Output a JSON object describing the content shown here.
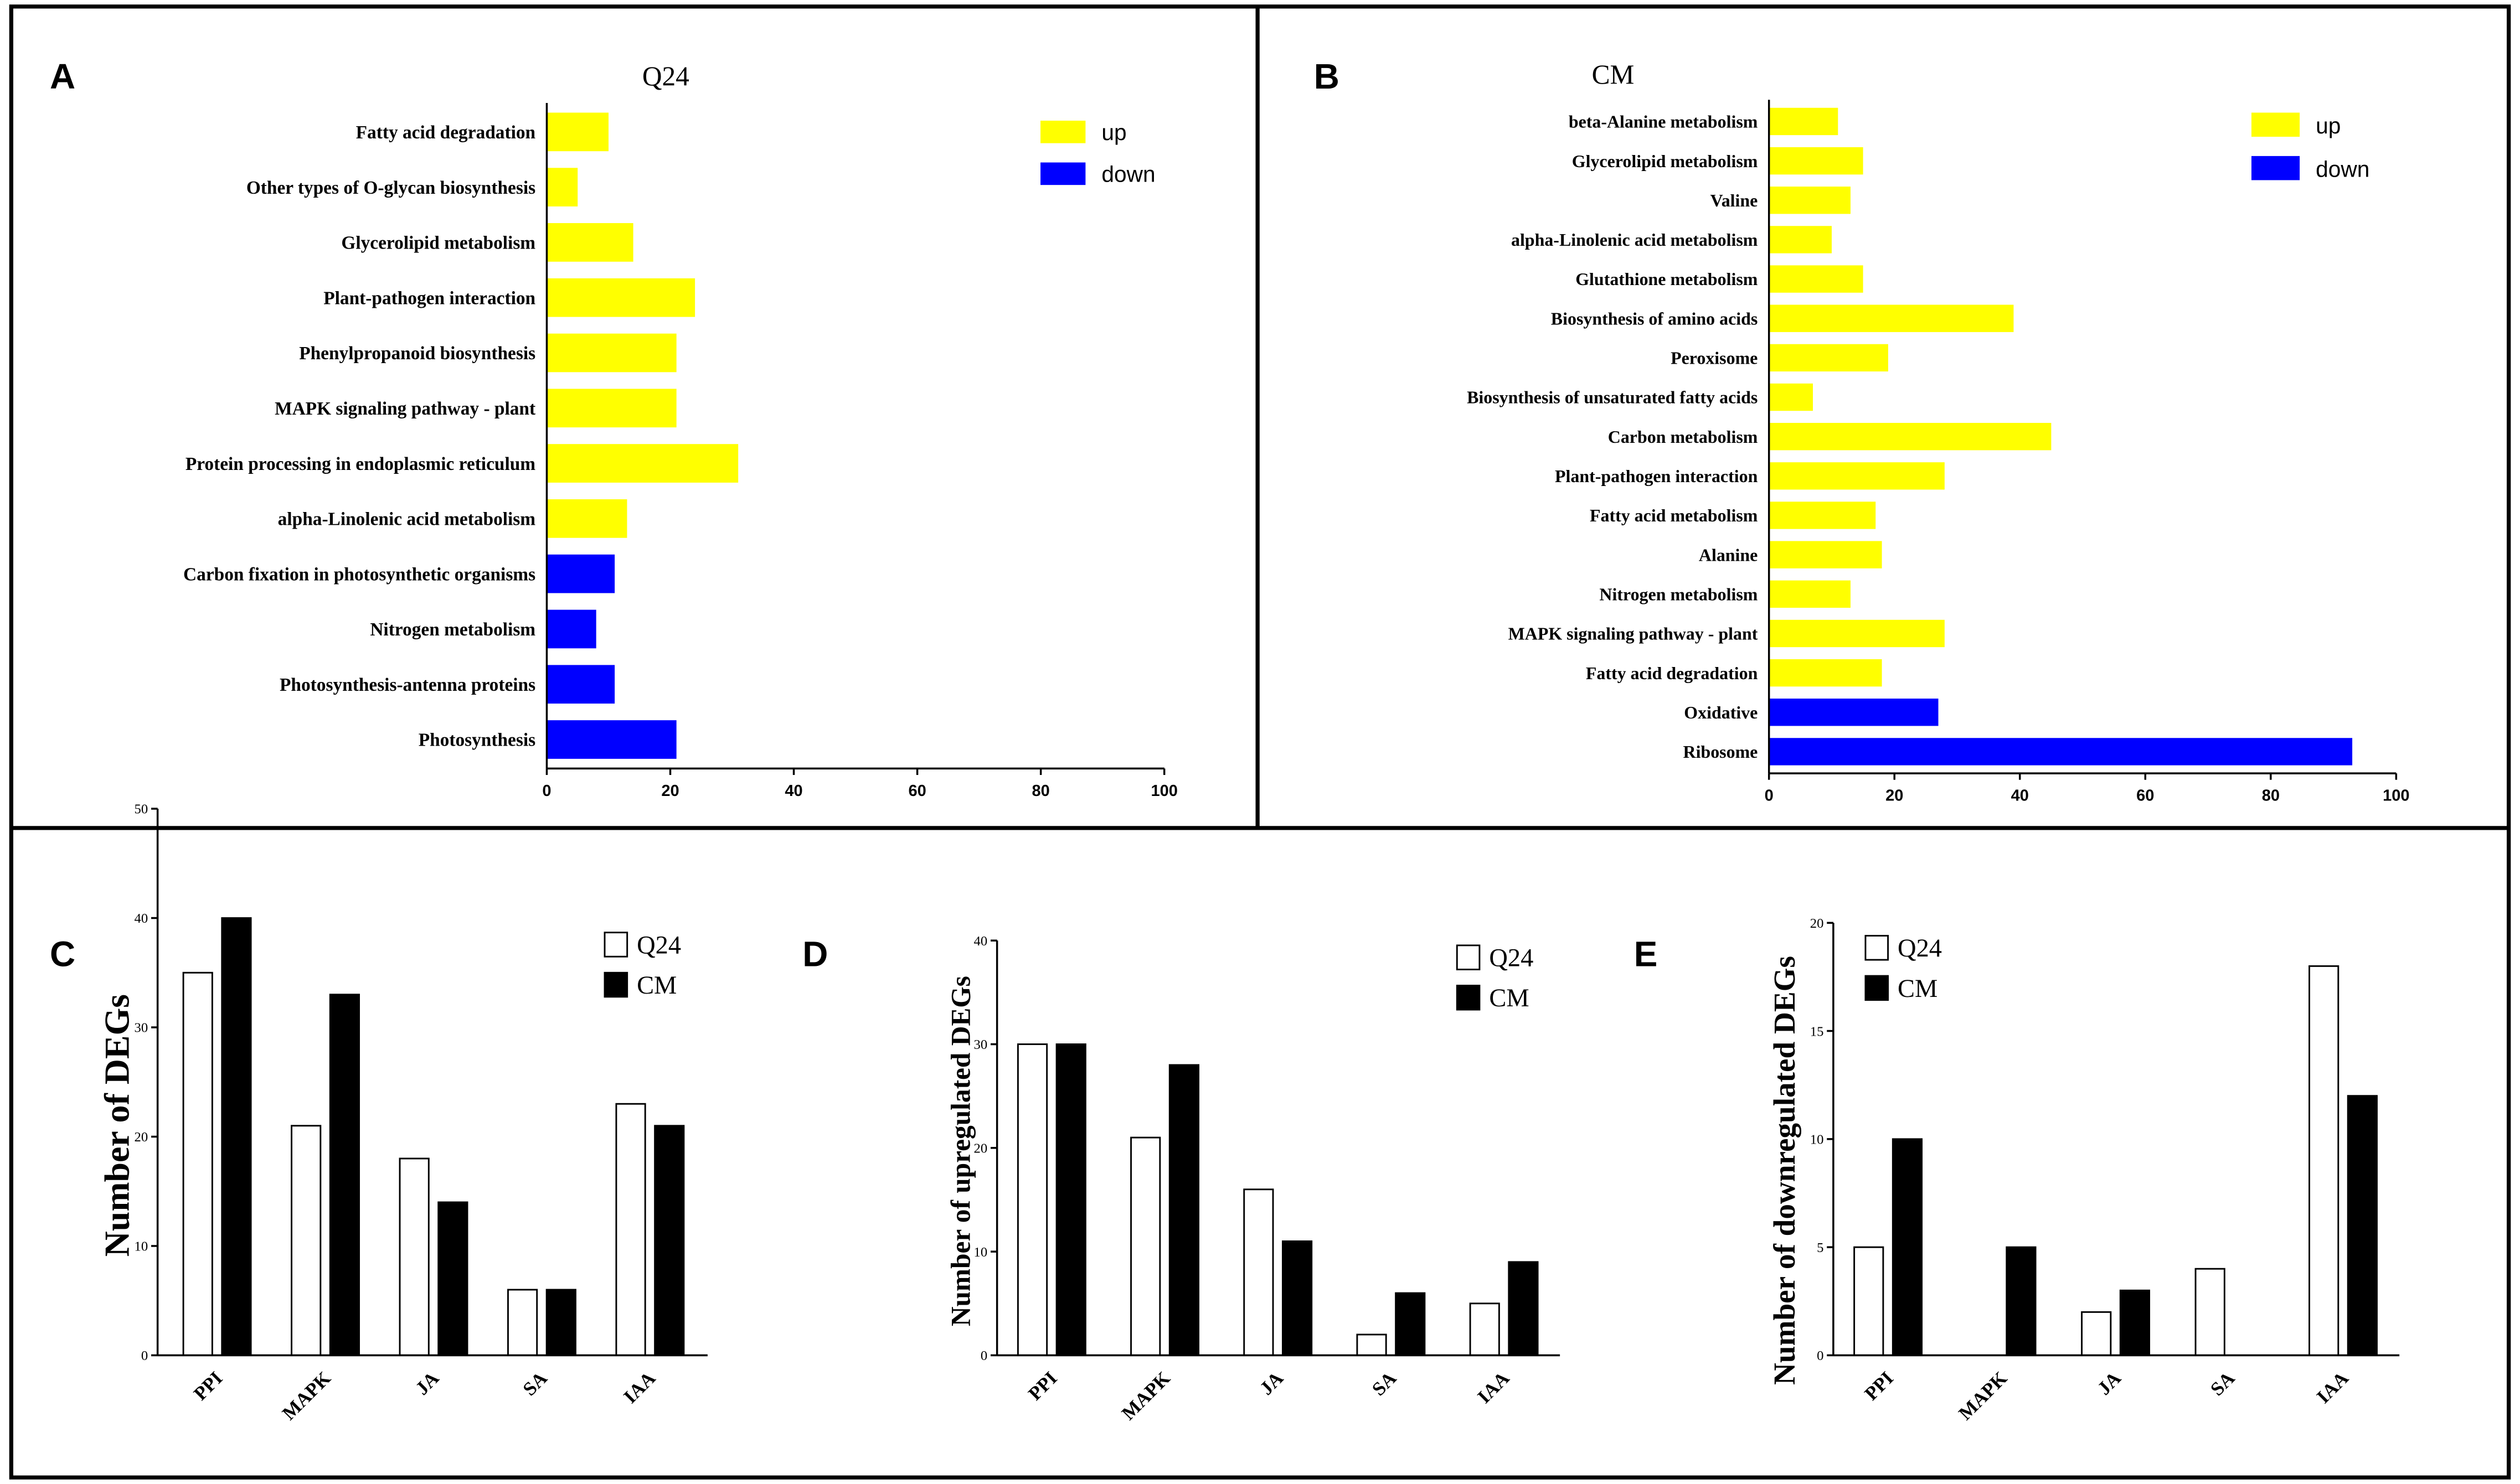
{
  "chart_data": [
    {
      "panel": "A",
      "type": "bar",
      "title": "Q24",
      "categories": [
        "Fatty acid degradation",
        "Other types of O-glycan biosynthesis",
        "Glycerolipid metabolism",
        "Plant-pathogen interaction",
        "Phenylpropanoid biosynthesis",
        "MAPK signaling pathway - plant",
        "Protein processing in endoplasmic reticulum",
        "alpha-Linolenic acid metabolism",
        "Carbon fixation in photosynthetic organisms",
        "Nitrogen metabolism",
        "Photosynthesis-antenna proteins",
        "Photosynthesis"
      ],
      "values": [
        10,
        5,
        14,
        24,
        21,
        21,
        31,
        13,
        11,
        8,
        11,
        21
      ],
      "groups": [
        "up",
        "up",
        "up",
        "up",
        "up",
        "up",
        "up",
        "up",
        "down",
        "down",
        "down",
        "down"
      ],
      "legend": [
        {
          "label": "up",
          "color": "#ffff00"
        },
        {
          "label": "down",
          "color": "#0000ff"
        }
      ],
      "xlim": [
        0,
        100
      ],
      "xticks": [
        0,
        20,
        40,
        60,
        80,
        100
      ]
    },
    {
      "panel": "B",
      "type": "bar",
      "title": "CM",
      "categories": [
        "beta-Alanine metabolism",
        "Glycerolipid metabolism",
        "Valine",
        "alpha-Linolenic acid metabolism",
        "Glutathione metabolism",
        "Biosynthesis of amino acids",
        "Peroxisome",
        "Biosynthesis of unsaturated fatty acids",
        "Carbon metabolism",
        "Plant-pathogen interaction",
        "Fatty acid metabolism",
        "Alanine",
        "Nitrogen metabolism",
        "MAPK signaling pathway - plant",
        "Fatty acid degradation",
        "Oxidative",
        "Ribosome"
      ],
      "values": [
        11,
        15,
        13,
        10,
        15,
        39,
        19,
        7,
        45,
        28,
        17,
        18,
        13,
        28,
        18,
        27,
        93
      ],
      "groups": [
        "up",
        "up",
        "up",
        "up",
        "up",
        "up",
        "up",
        "up",
        "up",
        "up",
        "up",
        "up",
        "up",
        "up",
        "up",
        "down",
        "down"
      ],
      "legend": [
        {
          "label": "up",
          "color": "#ffff00"
        },
        {
          "label": "down",
          "color": "#0000ff"
        }
      ],
      "xlim": [
        0,
        100
      ],
      "xticks": [
        0,
        20,
        40,
        60,
        80,
        100
      ]
    },
    {
      "panel": "C",
      "type": "bar",
      "categories": [
        "PPI",
        "MAPK",
        "JA",
        "SA",
        "IAA"
      ],
      "series": [
        {
          "name": "Q24",
          "values": [
            35,
            21,
            18,
            6,
            23
          ],
          "color": "#ffffff"
        },
        {
          "name": "CM",
          "values": [
            40,
            33,
            14,
            6,
            21
          ],
          "color": "#000000"
        }
      ],
      "ylabel": "Number of DEGs",
      "ylim": [
        0,
        50
      ],
      "yticks": [
        0,
        10,
        20,
        30,
        40,
        50
      ]
    },
    {
      "panel": "D",
      "type": "bar",
      "categories": [
        "PPI",
        "MAPK",
        "JA",
        "SA",
        "IAA"
      ],
      "series": [
        {
          "name": "Q24",
          "values": [
            30,
            21,
            16,
            2,
            5
          ],
          "color": "#ffffff"
        },
        {
          "name": "CM",
          "values": [
            30,
            28,
            11,
            6,
            9
          ],
          "color": "#000000"
        }
      ],
      "ylabel": "Number of upregulated DEGs",
      "ylim": [
        0,
        40
      ],
      "yticks": [
        0,
        10,
        20,
        30,
        40
      ]
    },
    {
      "panel": "E",
      "type": "bar",
      "categories": [
        "PPI",
        "MAPK",
        "JA",
        "SA",
        "IAA"
      ],
      "series": [
        {
          "name": "Q24",
          "values": [
            5,
            0,
            2,
            4,
            18
          ],
          "color": "#ffffff"
        },
        {
          "name": "CM",
          "values": [
            10,
            5,
            3,
            0,
            12
          ],
          "color": "#000000"
        }
      ],
      "ylabel": "Number of downregulated DEGs",
      "ylim": [
        0,
        20
      ],
      "yticks": [
        0,
        5,
        10,
        15,
        20
      ]
    }
  ]
}
